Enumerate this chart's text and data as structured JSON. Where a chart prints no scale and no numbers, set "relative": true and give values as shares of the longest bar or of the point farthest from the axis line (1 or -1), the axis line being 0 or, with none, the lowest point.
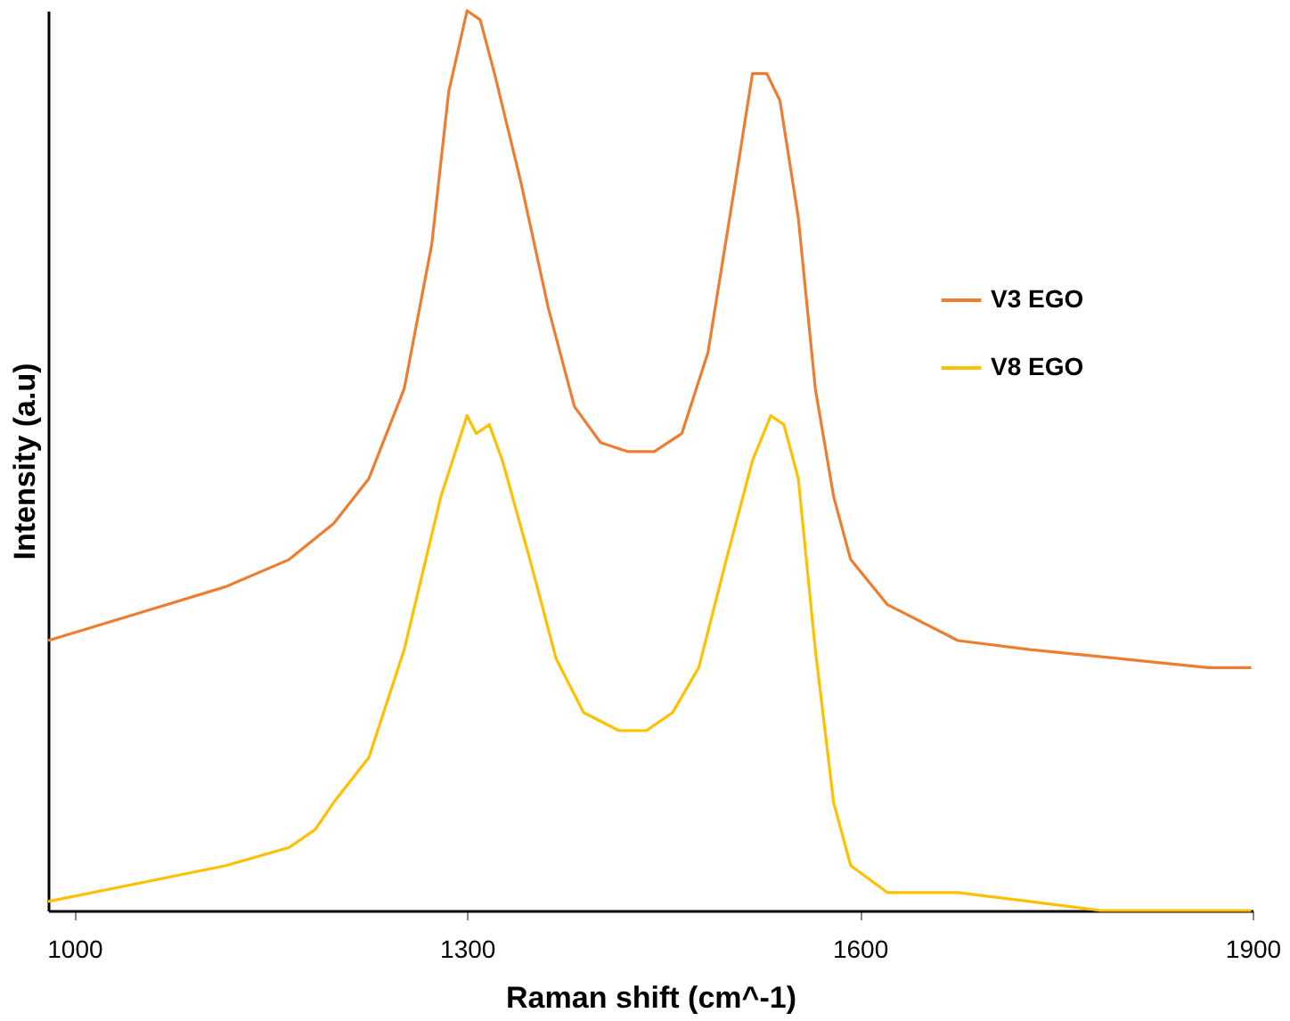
{
  "chart_data": {
    "type": "line",
    "xlabel": "Raman shift (cm^-1)",
    "ylabel": "Intensity (a.u)",
    "relative": true,
    "xlim": [
      980,
      1900
    ],
    "xticks": [
      1000,
      1300,
      1600,
      1900
    ],
    "grid": false,
    "legend": "right",
    "marker": "none",
    "line_style": "solid",
    "series": [
      {
        "name": "V3 EGO",
        "color": "#ed7d31",
        "x": [
          980,
          1048,
          1116,
          1164,
          1198,
          1225,
          1252,
          1273,
          1286,
          1300,
          1310,
          1321,
          1341,
          1362,
          1382,
          1402,
          1423,
          1443,
          1464,
          1484,
          1505,
          1518,
          1529,
          1539,
          1553,
          1566,
          1580,
          1593,
          1621,
          1675,
          1730,
          1798,
          1866,
          1899
        ],
        "values": [
          0.3,
          0.33,
          0.36,
          0.39,
          0.43,
          0.48,
          0.58,
          0.74,
          0.91,
          1.0,
          0.99,
          0.93,
          0.81,
          0.67,
          0.56,
          0.52,
          0.51,
          0.51,
          0.53,
          0.62,
          0.81,
          0.93,
          0.93,
          0.9,
          0.77,
          0.58,
          0.46,
          0.39,
          0.34,
          0.3,
          0.29,
          0.28,
          0.27,
          0.27
        ]
      },
      {
        "name": "V8 EGO",
        "color": "#ffc000",
        "x": [
          980,
          1048,
          1116,
          1164,
          1184,
          1198,
          1225,
          1252,
          1280,
          1300,
          1307,
          1317,
          1327,
          1348,
          1368,
          1389,
          1416,
          1437,
          1457,
          1477,
          1498,
          1518,
          1532,
          1542,
          1553,
          1566,
          1580,
          1593,
          1621,
          1675,
          1730,
          1784,
          1899
        ],
        "values": [
          0.01,
          0.03,
          0.05,
          0.07,
          0.09,
          0.12,
          0.17,
          0.29,
          0.46,
          0.55,
          0.53,
          0.54,
          0.5,
          0.39,
          0.28,
          0.22,
          0.2,
          0.2,
          0.22,
          0.27,
          0.39,
          0.5,
          0.55,
          0.54,
          0.48,
          0.29,
          0.12,
          0.05,
          0.02,
          0.02,
          0.01,
          0.0,
          0.0
        ]
      }
    ]
  }
}
